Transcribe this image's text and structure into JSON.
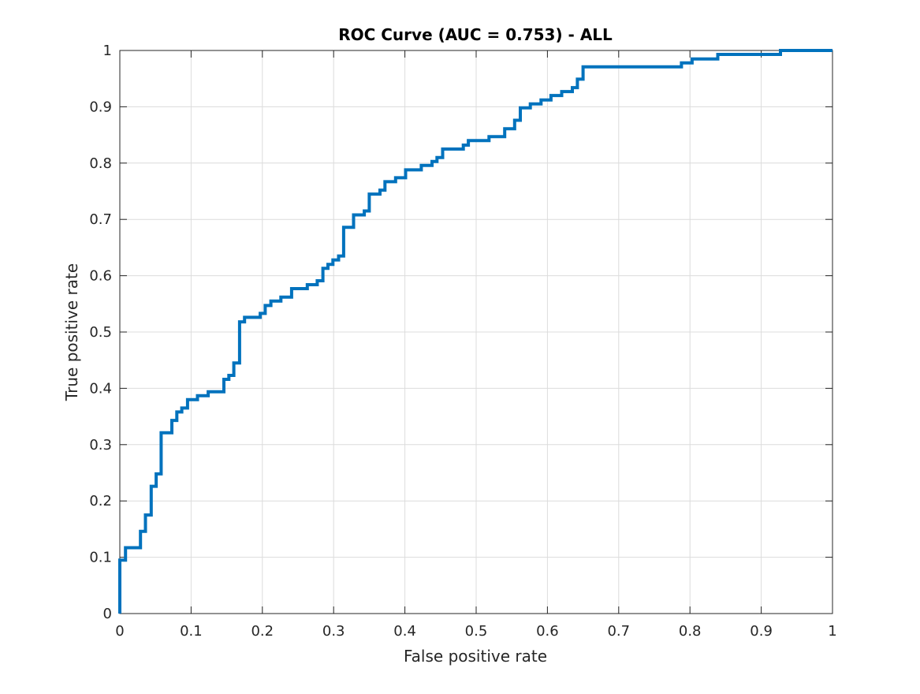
{
  "chart_data": {
    "type": "line",
    "title": "ROC Curve (AUC = 0.753) - ALL",
    "xlabel": "False positive rate",
    "ylabel": "True positive rate",
    "xlim": [
      0,
      1
    ],
    "ylim": [
      0,
      1
    ],
    "grid": true,
    "x_ticks": [
      0,
      0.1,
      0.2,
      0.3,
      0.4,
      0.5,
      0.6,
      0.7,
      0.8,
      0.9,
      1
    ],
    "y_ticks": [
      0,
      0.1,
      0.2,
      0.3,
      0.4,
      0.5,
      0.6,
      0.7,
      0.8,
      0.9,
      1
    ],
    "x_tick_labels": [
      "0",
      "0.1",
      "0.2",
      "0.3",
      "0.4",
      "0.5",
      "0.6",
      "0.7",
      "0.8",
      "0.9",
      "1"
    ],
    "y_tick_labels": [
      "0",
      "0.1",
      "0.2",
      "0.3",
      "0.4",
      "0.5",
      "0.6",
      "0.7",
      "0.8",
      "0.9",
      "1"
    ],
    "series": [
      {
        "color": "#0072BD",
        "x": [
          0,
          0,
          0.008,
          0.008,
          0.029,
          0.029,
          0.036,
          0.036,
          0.044,
          0.044,
          0.051,
          0.051,
          0.058,
          0.058,
          0.073,
          0.073,
          0.08,
          0.08,
          0.087,
          0.087,
          0.095,
          0.095,
          0.109,
          0.109,
          0.124,
          0.124,
          0.146,
          0.146,
          0.153,
          0.153,
          0.16,
          0.16,
          0.168,
          0.168,
          0.175,
          0.175,
          0.197,
          0.197,
          0.204,
          0.204,
          0.212,
          0.212,
          0.226,
          0.226,
          0.241,
          0.241,
          0.263,
          0.263,
          0.277,
          0.277,
          0.285,
          0.285,
          0.292,
          0.292,
          0.299,
          0.299,
          0.307,
          0.307,
          0.314,
          0.314,
          0.328,
          0.328,
          0.343,
          0.343,
          0.35,
          0.35,
          0.365,
          0.365,
          0.372,
          0.372,
          0.387,
          0.387,
          0.401,
          0.401,
          0.423,
          0.423,
          0.438,
          0.438,
          0.445,
          0.445,
          0.453,
          0.453,
          0.482,
          0.482,
          0.489,
          0.489,
          0.518,
          0.518,
          0.54,
          0.54,
          0.554,
          0.554,
          0.562,
          0.562,
          0.576,
          0.576,
          0.591,
          0.591,
          0.605,
          0.605,
          0.62,
          0.62,
          0.635,
          0.635,
          0.642,
          0.642,
          0.65,
          0.65,
          0.788,
          0.788,
          0.803,
          0.803,
          0.839,
          0.839,
          0.927,
          0.927,
          0.978,
          0.978,
          1
        ],
        "y": [
          0,
          0.095,
          0.095,
          0.117,
          0.117,
          0.146,
          0.146,
          0.175,
          0.175,
          0.226,
          0.226,
          0.248,
          0.248,
          0.321,
          0.321,
          0.343,
          0.343,
          0.358,
          0.358,
          0.365,
          0.365,
          0.38,
          0.38,
          0.387,
          0.387,
          0.394,
          0.394,
          0.416,
          0.416,
          0.423,
          0.423,
          0.445,
          0.445,
          0.518,
          0.518,
          0.526,
          0.526,
          0.533,
          0.533,
          0.547,
          0.547,
          0.555,
          0.555,
          0.562,
          0.562,
          0.577,
          0.577,
          0.584,
          0.584,
          0.591,
          0.591,
          0.613,
          0.613,
          0.62,
          0.62,
          0.628,
          0.628,
          0.635,
          0.635,
          0.686,
          0.686,
          0.708,
          0.708,
          0.715,
          0.715,
          0.745,
          0.745,
          0.752,
          0.752,
          0.767,
          0.767,
          0.774,
          0.774,
          0.788,
          0.788,
          0.796,
          0.796,
          0.803,
          0.803,
          0.81,
          0.81,
          0.825,
          0.825,
          0.832,
          0.832,
          0.84,
          0.84,
          0.847,
          0.847,
          0.861,
          0.861,
          0.876,
          0.876,
          0.898,
          0.898,
          0.905,
          0.905,
          0.912,
          0.912,
          0.92,
          0.92,
          0.927,
          0.927,
          0.934,
          0.934,
          0.949,
          0.949,
          0.971,
          0.971,
          0.978,
          0.978,
          0.985,
          0.985,
          0.993,
          0.993,
          1,
          1,
          1,
          1
        ]
      }
    ]
  }
}
